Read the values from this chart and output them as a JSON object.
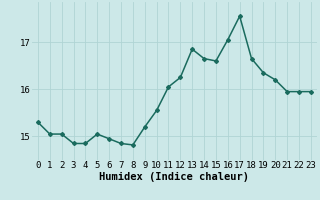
{
  "x": [
    0,
    1,
    2,
    3,
    4,
    5,
    6,
    7,
    8,
    9,
    10,
    11,
    12,
    13,
    14,
    15,
    16,
    17,
    18,
    19,
    20,
    21,
    22,
    23
  ],
  "y": [
    15.3,
    15.05,
    15.05,
    14.85,
    14.85,
    15.05,
    14.95,
    14.85,
    14.82,
    15.2,
    15.55,
    16.05,
    16.25,
    16.85,
    16.65,
    16.6,
    17.05,
    17.55,
    16.65,
    16.35,
    16.2,
    15.95,
    15.95,
    15.95
  ],
  "line_color": "#1a6b5e",
  "marker": "D",
  "marker_size": 2.0,
  "bg_color": "#cce8e8",
  "grid_color": "#b0d4d4",
  "xlabel": "Humidex (Indice chaleur)",
  "yticks": [
    15,
    16,
    17
  ],
  "xticks": [
    0,
    1,
    2,
    3,
    4,
    5,
    6,
    7,
    8,
    9,
    10,
    11,
    12,
    13,
    14,
    15,
    16,
    17,
    18,
    19,
    20,
    21,
    22,
    23
  ],
  "ylim": [
    14.5,
    17.85
  ],
  "xlim": [
    -0.5,
    23.5
  ],
  "xlabel_fontsize": 7.5,
  "tick_fontsize": 6.5,
  "line_width": 1.1
}
